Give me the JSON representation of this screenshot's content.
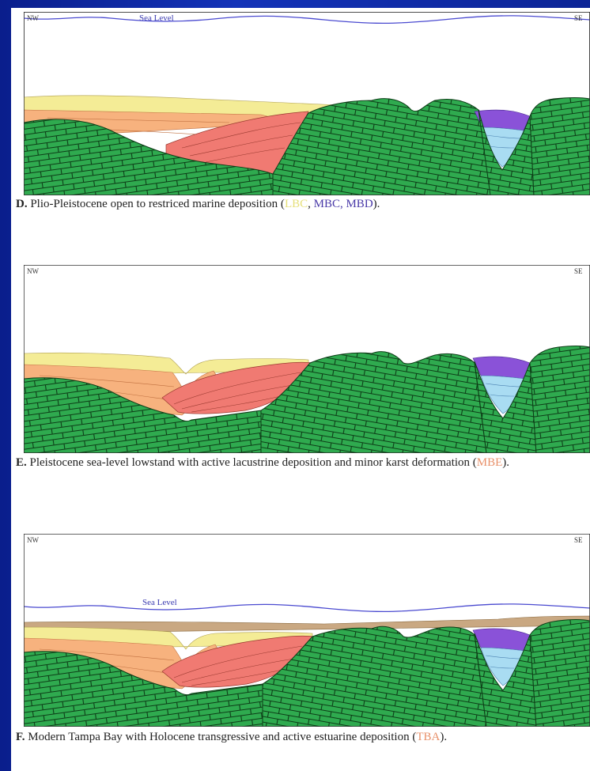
{
  "panels": [
    {
      "id": "D",
      "corner_left": "NW",
      "corner_right": "SE",
      "sea_level_label": "Sea Level",
      "caption_letter": "D.",
      "caption_text": " Plio-Pleistocene open to restriced marine deposition (",
      "caption_units": [
        {
          "text": "LBC",
          "color": "#e6e07a"
        },
        {
          "text": ", ",
          "color": "#222222"
        },
        {
          "text": "MBC, MBD",
          "color": "#4a3aa8"
        }
      ],
      "caption_end": ")."
    },
    {
      "id": "E",
      "corner_left": "NW",
      "corner_right": "SE",
      "caption_letter": "E.",
      "caption_text": " Pleistocene sea-level lowstand with active lacustrine deposition and minor karst deformation (",
      "caption_unit": "MBE",
      "caption_end": ")."
    },
    {
      "id": "F",
      "corner_left": "NW",
      "corner_right": "SE",
      "sea_level_label": "Sea Level",
      "caption_letter": "F.",
      "caption_text": " Modern Tampa Bay with Holocene transgressive and active estuarine deposition (",
      "caption_unit": "TBA",
      "caption_end": ")."
    }
  ],
  "colors": {
    "limestone": "#2faa4f",
    "limestone_line": "#0d3d17",
    "red_fill": "#f07a72",
    "orange_fill": "#f7b27e",
    "yellow_fill": "#f4ec96",
    "purple_fill": "#8a52d8",
    "blue_fill": "#a9dcf2",
    "tan_fill": "#c9a882",
    "sea_line": "#4a4ad0"
  }
}
